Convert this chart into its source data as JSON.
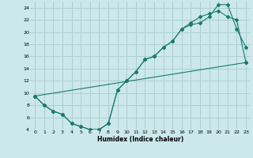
{
  "xlabel": "Humidex (Indice chaleur)",
  "ylabel": "",
  "bg_color": "#cce8eb",
  "grid_color": "#aacfd4",
  "line_color": "#1a7a6e",
  "xlim": [
    -0.5,
    23.5
  ],
  "ylim": [
    4,
    25
  ],
  "xticks": [
    0,
    1,
    2,
    3,
    4,
    5,
    6,
    7,
    8,
    9,
    10,
    11,
    12,
    13,
    14,
    15,
    16,
    17,
    18,
    19,
    20,
    21,
    22,
    23
  ],
  "yticks": [
    4,
    6,
    8,
    10,
    12,
    14,
    16,
    18,
    20,
    22,
    24
  ],
  "line1_x": [
    0,
    1,
    2,
    3,
    4,
    5,
    6,
    7,
    8,
    9,
    10,
    11,
    12,
    13,
    14,
    15,
    16,
    17,
    18,
    19,
    20,
    21,
    22,
    23
  ],
  "line1_y": [
    9.5,
    8.0,
    7.0,
    6.5,
    5.0,
    4.5,
    4.0,
    4.0,
    5.0,
    10.5,
    12.0,
    13.5,
    15.5,
    16.0,
    17.5,
    18.5,
    20.5,
    21.2,
    21.5,
    22.5,
    24.5,
    24.5,
    20.5,
    17.5
  ],
  "line2_x": [
    0,
    1,
    2,
    3,
    4,
    5,
    6,
    7,
    8,
    9,
    10,
    11,
    12,
    13,
    14,
    15,
    16,
    17,
    18,
    19,
    20,
    21,
    22,
    23
  ],
  "line2_y": [
    9.5,
    8.0,
    7.0,
    6.5,
    5.0,
    4.5,
    4.0,
    4.0,
    5.0,
    10.5,
    12.0,
    13.5,
    15.5,
    16.0,
    17.5,
    18.5,
    20.5,
    21.5,
    22.5,
    23.0,
    23.5,
    22.5,
    22.0,
    15.0
  ],
  "line3_x": [
    0,
    23
  ],
  "line3_y": [
    9.5,
    15.0
  ]
}
